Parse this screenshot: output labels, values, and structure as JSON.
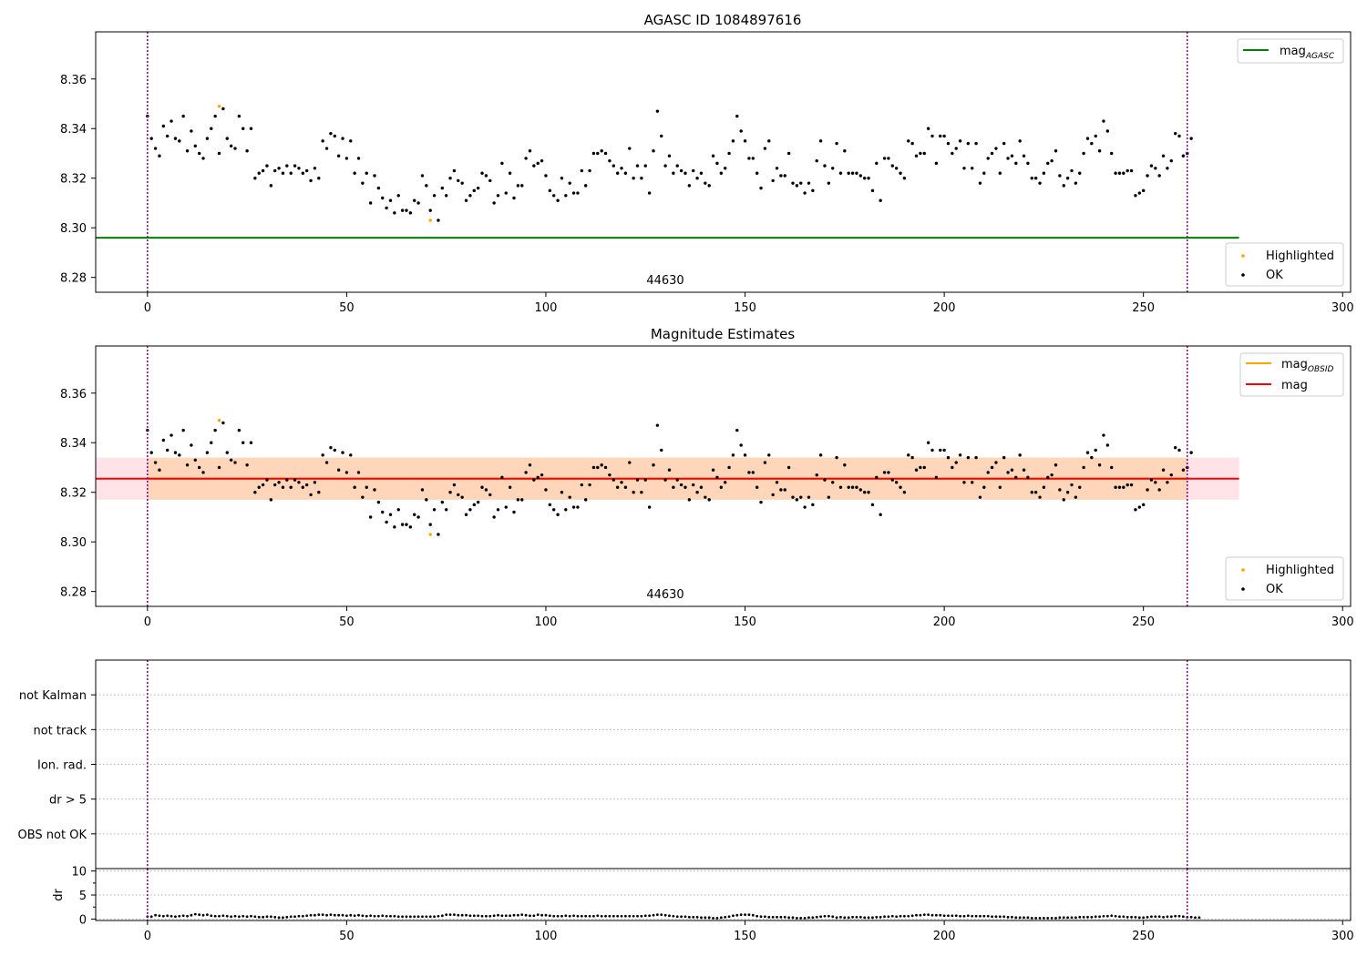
{
  "chart_data": [
    {
      "type": "scatter",
      "title": "AGASC ID 1084897616",
      "xlabel": "",
      "ylabel": "",
      "xlim": [
        -13,
        302
      ],
      "ylim": [
        8.274,
        8.379
      ],
      "x_ticks": [
        0,
        50,
        100,
        150,
        200,
        250,
        300
      ],
      "y_ticks": [
        8.28,
        8.3,
        8.32,
        8.34,
        8.36
      ],
      "grid": false,
      "vlines": [
        0,
        261
      ],
      "obsid_label": {
        "text": "44630",
        "x": 130.5
      },
      "lines": [
        {
          "name": "mag_AGASC",
          "y": 8.296,
          "x_range": [
            -13,
            274
          ],
          "color": "#008000"
        }
      ],
      "legend_top": {
        "location": "upper right",
        "entries": [
          {
            "label": "mag",
            "sub": "AGASC",
            "color": "#008000"
          }
        ]
      },
      "legend_bottom": {
        "location": "lower right",
        "entries": [
          {
            "label": "Highlighted",
            "color": "#ffa500"
          },
          {
            "label": "OK",
            "color": "#000000"
          }
        ]
      },
      "series": [
        {
          "name": "OK",
          "color": "#000000",
          "y": [
            8.345,
            8.336,
            8.332,
            8.329,
            8.341,
            8.337,
            8.343,
            8.336,
            8.335,
            8.345,
            8.331,
            8.339,
            8.333,
            8.33,
            8.328,
            8.336,
            8.34,
            8.345,
            8.33,
            8.348,
            8.336,
            8.333,
            8.332,
            8.345,
            8.34,
            8.331,
            8.34,
            8.32,
            8.322,
            8.323,
            8.325,
            8.317,
            8.323,
            8.324,
            8.322,
            8.325,
            8.322,
            8.325,
            8.324,
            8.322,
            8.323,
            8.319,
            8.324,
            8.32,
            8.335,
            8.332,
            8.338,
            8.337,
            8.329,
            8.336,
            8.328,
            8.335,
            8.322,
            8.328,
            8.318,
            8.322,
            8.31,
            8.321,
            8.316,
            8.312,
            8.308,
            8.311,
            8.306,
            8.313,
            8.307,
            8.307,
            8.306,
            8.311,
            8.31,
            8.321,
            8.317,
            8.307,
            8.313,
            8.303,
            8.316,
            8.313,
            8.32,
            8.323,
            8.319,
            8.318,
            8.311,
            8.313,
            8.315,
            8.316,
            8.322,
            8.321,
            8.319,
            8.31,
            8.313,
            8.326,
            8.314,
            8.322,
            8.312,
            8.317,
            8.317,
            8.328,
            8.331,
            8.325,
            8.326,
            8.327,
            8.321,
            8.315,
            8.313,
            8.311,
            8.32,
            8.313,
            8.318,
            8.314,
            8.314,
            8.323,
            8.317,
            8.323,
            8.33,
            8.33,
            8.331,
            8.33,
            8.327,
            8.325,
            8.322,
            8.324,
            8.322,
            8.332,
            8.32,
            8.325,
            8.32,
            8.325,
            8.314,
            8.331,
            8.347,
            8.337,
            8.325,
            8.329,
            8.322,
            8.325,
            8.323,
            8.322,
            8.317,
            8.323,
            8.32,
            8.322,
            8.318,
            8.317,
            8.329,
            8.326,
            8.322,
            8.324,
            8.33,
            8.335,
            8.345,
            8.339,
            8.335,
            8.328,
            8.328,
            8.322,
            8.316,
            8.332,
            8.335,
            8.319,
            8.324,
            8.321,
            8.321,
            8.33,
            8.318,
            8.317,
            8.318,
            8.314,
            8.318,
            8.315,
            8.327,
            8.335,
            8.325,
            8.318,
            8.324,
            8.334,
            8.322,
            8.331,
            8.322,
            8.322,
            8.322,
            8.321,
            8.32,
            8.32,
            8.315,
            8.326,
            8.311,
            8.328,
            8.328,
            8.325,
            8.324,
            8.322,
            8.32,
            8.335,
            8.334,
            8.329,
            8.33,
            8.33,
            8.34,
            8.337,
            8.326,
            8.337,
            8.337,
            8.334,
            8.33,
            8.332,
            8.335,
            8.324,
            8.334,
            8.324,
            8.334,
            8.318,
            8.322,
            8.328,
            8.33,
            8.332,
            8.322,
            8.334,
            8.328,
            8.329,
            8.326,
            8.335,
            8.329,
            8.326,
            8.32,
            8.32,
            8.318,
            8.322,
            8.326,
            8.327,
            8.331,
            8.321,
            8.317,
            8.32,
            8.323,
            8.318,
            8.322,
            8.33,
            8.336,
            8.334,
            8.337,
            8.331,
            8.343,
            8.339,
            8.33,
            8.322,
            8.322,
            8.322,
            8.323,
            8.323,
            8.313,
            8.314,
            8.315,
            8.321,
            8.325,
            8.324,
            8.321,
            8.329,
            8.324,
            8.327,
            8.338,
            8.337,
            8.329,
            8.33,
            8.336
          ]
        },
        {
          "name": "Highlighted",
          "color": "#ffa500",
          "x": [
            18,
            71
          ],
          "y": [
            8.349,
            8.303
          ]
        }
      ]
    },
    {
      "type": "scatter",
      "title": "Magnitude Estimates",
      "xlabel": "",
      "ylabel": "",
      "xlim": [
        -13,
        302
      ],
      "ylim": [
        8.274,
        8.379
      ],
      "x_ticks": [
        0,
        50,
        100,
        150,
        200,
        250,
        300
      ],
      "y_ticks": [
        8.28,
        8.3,
        8.32,
        8.34,
        8.36
      ],
      "grid": false,
      "vlines": [
        0,
        261
      ],
      "obsid_label": {
        "text": "44630",
        "x": 130.5
      },
      "bands": [
        {
          "name": "mag band",
          "y_range": [
            8.317,
            8.334
          ],
          "x_range": [
            -13,
            274
          ],
          "color": "#ffc0cb"
        },
        {
          "name": "mag_OBSID band",
          "y_range": [
            8.317,
            8.334
          ],
          "x_range": [
            0,
            261
          ],
          "color": "#ffa500"
        }
      ],
      "lines": [
        {
          "name": "mag_OBSID",
          "y": 8.3255,
          "x_range": [
            0,
            261
          ],
          "color": "#ffa500"
        },
        {
          "name": "mag",
          "y": 8.3255,
          "x_range": [
            -13,
            274
          ],
          "color": "#ff0000"
        }
      ],
      "legend_top": {
        "location": "upper right",
        "entries": [
          {
            "label": "mag",
            "sub": "OBSID",
            "color": "#ffa500"
          },
          {
            "label": "mag",
            "sub": "",
            "color": "#ff0000"
          }
        ]
      },
      "legend_bottom": {
        "location": "lower right",
        "entries": [
          {
            "label": "Highlighted",
            "color": "#ffa500"
          },
          {
            "label": "OK",
            "color": "#000000"
          }
        ]
      },
      "series": [
        {
          "name": "OK",
          "color": "#000000",
          "same_as_panel": 0
        },
        {
          "name": "Highlighted",
          "color": "#ffa500",
          "x": [
            18,
            71
          ],
          "y": [
            8.349,
            8.303
          ]
        }
      ]
    },
    {
      "type": "scatter",
      "title": "",
      "xlim": [
        -13,
        302
      ],
      "categories": [
        "OBS not OK",
        "dr > 5",
        "Ion. rad.",
        "not track",
        "not Kalman"
      ],
      "grid": true,
      "vlines": [
        0,
        261
      ],
      "series": []
    },
    {
      "type": "scatter",
      "title": "",
      "xlabel": "",
      "ylabel": "dr",
      "xlim": [
        -13,
        302
      ],
      "ylim": [
        -0.3,
        10.5
      ],
      "x_ticks": [
        0,
        50,
        100,
        150,
        200,
        250,
        300
      ],
      "y_ticks": [
        0,
        5,
        10
      ],
      "grid": true,
      "vlines": [
        0,
        261
      ],
      "series": [
        {
          "name": "dr",
          "color": "#000000",
          "y": [
            0.5,
            0.5,
            0.8,
            0.7,
            0.6,
            0.7,
            0.6,
            0.5,
            0.6,
            0.7,
            0.6,
            0.8,
            1.0,
            0.9,
            0.8,
            0.9,
            0.7,
            0.6,
            0.6,
            0.7,
            0.6,
            0.5,
            0.6,
            0.5,
            0.6,
            0.5,
            0.6,
            0.5,
            0.4,
            0.4,
            0.5,
            0.5,
            0.4,
            0.3,
            0.3,
            0.4,
            0.5,
            0.5,
            0.6,
            0.6,
            0.7,
            0.8,
            0.8,
            0.9,
            0.9,
            0.8,
            0.9,
            0.8,
            0.8,
            0.8,
            0.7,
            0.8,
            0.7,
            0.8,
            0.7,
            0.6,
            0.7,
            0.6,
            0.6,
            0.7,
            0.6,
            0.6,
            0.6,
            0.5,
            0.5,
            0.5,
            0.5,
            0.5,
            0.5,
            0.5,
            0.5,
            0.5,
            0.5,
            0.6,
            0.7,
            0.9,
            0.9,
            0.9,
            0.8,
            0.8,
            0.8,
            0.7,
            0.7,
            0.7,
            0.6,
            0.6,
            0.6,
            0.7,
            0.8,
            0.7,
            0.7,
            0.7,
            0.8,
            0.8,
            0.9,
            0.8,
            0.7,
            0.7,
            0.9,
            0.8,
            0.8,
            0.7,
            0.6,
            0.6,
            0.6,
            0.7,
            0.6,
            0.7,
            0.6,
            0.6,
            0.6,
            0.6,
            0.6,
            0.7,
            0.6,
            0.6,
            0.6,
            0.6,
            0.6,
            0.6,
            0.6,
            0.6,
            0.6,
            0.6,
            0.6,
            0.7,
            0.7,
            0.8,
            0.9,
            0.9,
            0.8,
            0.7,
            0.6,
            0.5,
            0.5,
            0.5,
            0.4,
            0.4,
            0.4,
            0.3,
            0.3,
            0.3,
            0.2,
            0.2,
            0.3,
            0.4,
            0.5,
            0.7,
            0.8,
            0.9,
            0.9,
            0.9,
            0.8,
            0.6,
            0.5,
            0.5,
            0.4,
            0.4,
            0.4,
            0.4,
            0.4,
            0.3,
            0.3,
            0.2,
            0.2,
            0.2,
            0.3,
            0.3,
            0.4,
            0.5,
            0.6,
            0.6,
            0.5,
            0.3,
            0.4,
            0.3,
            0.3,
            0.4,
            0.4,
            0.4,
            0.3,
            0.3,
            0.3,
            0.4,
            0.4,
            0.5,
            0.5,
            0.6,
            0.5,
            0.6,
            0.6,
            0.6,
            0.7,
            0.8,
            0.8,
            0.9,
            0.9,
            0.8,
            0.8,
            0.8,
            0.7,
            0.7,
            0.7,
            0.7,
            0.6,
            0.6,
            0.7,
            0.6,
            0.6,
            0.6,
            0.6,
            0.6,
            0.5,
            0.5,
            0.5,
            0.5,
            0.4,
            0.4,
            0.3,
            0.3,
            0.3,
            0.3,
            0.2,
            0.2,
            0.2,
            0.2,
            0.2,
            0.2,
            0.2,
            0.3,
            0.3,
            0.3,
            0.3,
            0.3,
            0.4,
            0.4,
            0.4,
            0.4,
            0.5,
            0.5,
            0.6,
            0.6,
            0.7,
            0.6,
            0.5,
            0.5,
            0.4,
            0.4,
            0.4,
            0.3,
            0.3,
            0.4,
            0.5,
            0.5,
            0.5,
            0.4,
            0.5,
            0.5,
            0.6,
            0.6,
            0.5,
            0.4,
            0.4,
            0.3,
            0.3
          ]
        }
      ]
    }
  ]
}
